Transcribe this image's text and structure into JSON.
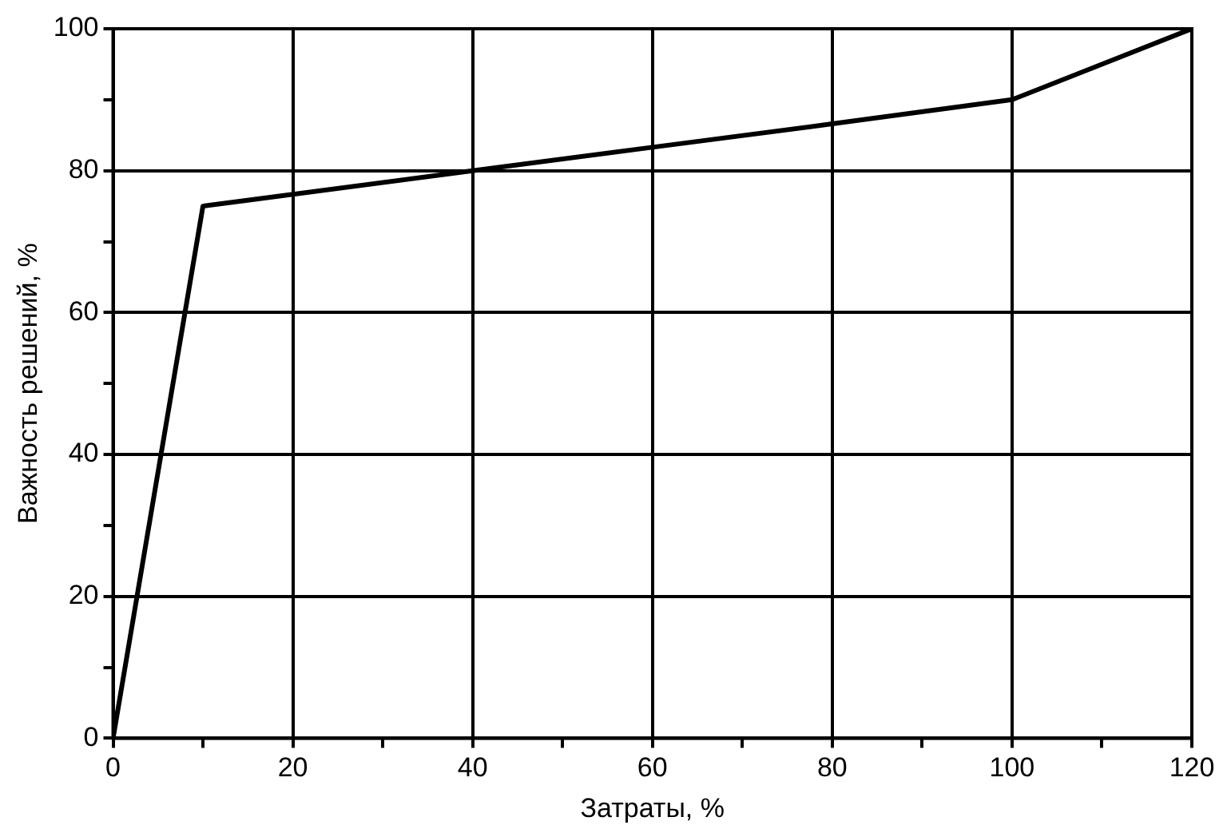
{
  "chart_data": {
    "type": "line",
    "xlabel": "Затраты, %",
    "ylabel": "Важность решений, %",
    "x": [
      0,
      10,
      40,
      60,
      80,
      100,
      120
    ],
    "series": [
      {
        "color": "#000000",
        "values": [
          0,
          75,
          80,
          83.3,
          86.6,
          90,
          100
        ]
      }
    ],
    "xlim": [
      0,
      120
    ],
    "xticks": [
      0,
      {
        "value": 10,
        "label": null
      },
      20,
      {
        "value": 30,
        "label": null
      },
      40,
      {
        "value": 50,
        "label": null
      },
      60,
      {
        "value": 70,
        "label": null
      },
      80,
      {
        "value": 90,
        "label": null
      },
      100,
      {
        "value": 110,
        "label": null
      },
      120
    ],
    "ylim": [
      0,
      100
    ],
    "yticks": [
      0,
      {
        "value": 10,
        "label": null
      },
      20,
      {
        "value": 30,
        "label": null
      },
      40,
      {
        "value": 50,
        "label": null
      },
      60,
      {
        "value": 70,
        "label": null
      },
      80,
      {
        "value": 90,
        "label": null
      },
      100
    ],
    "grid": true,
    "legend": false,
    "marker": "none",
    "line_style": "solid"
  }
}
